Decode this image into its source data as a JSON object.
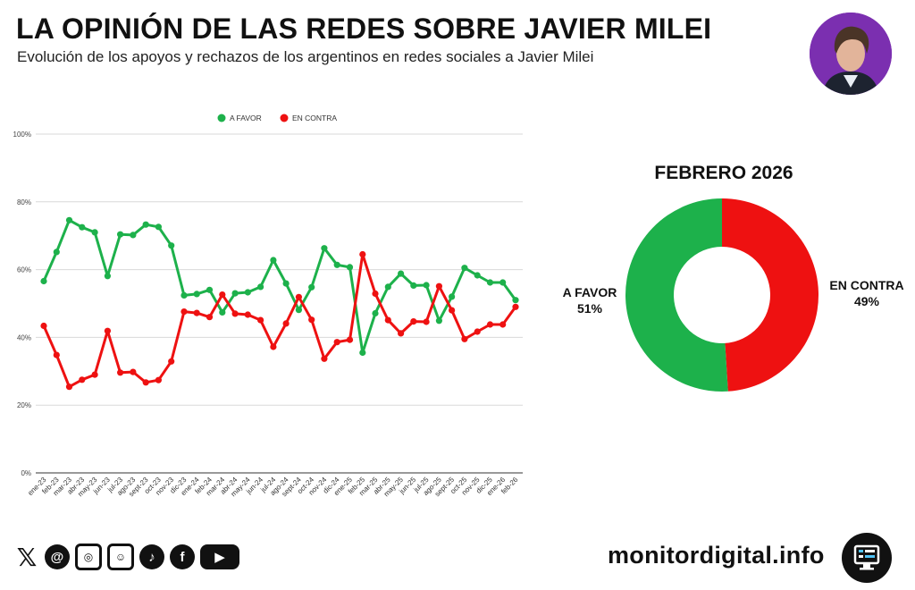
{
  "header": {
    "title": "LA OPINIÓN DE LAS REDES SOBRE JAVIER MILEI",
    "subtitle": "Evolución de los apoyos y rechazos de los argentinos en redes sociales a Javier Milei"
  },
  "colors": {
    "favor": "#1db14b",
    "contra": "#ee1111"
  },
  "chart_data": [
    {
      "type": "line",
      "categories": [
        "ene-23",
        "feb-23",
        "mar-23",
        "abr-23",
        "may-23",
        "jun-23",
        "jul-23",
        "ago-23",
        "sept-23",
        "oct-23",
        "nov-23",
        "dic-23",
        "ene-24",
        "feb-24",
        "mar-24",
        "abr-24",
        "may-24",
        "jun-24",
        "jul-24",
        "ago-24",
        "sept-24",
        "oct-24",
        "nov-24",
        "dic-24",
        "ene-25",
        "feb-25",
        "mar-25",
        "abr-25",
        "may-25",
        "jun-25",
        "jul-25",
        "ago-25",
        "sept-25",
        "oct-25",
        "nov-25",
        "dic-25",
        "ene-26",
        "feb-26"
      ],
      "series": [
        {
          "name": "A FAVOR",
          "values": [
            56.6,
            65.2,
            74.6,
            72.5,
            71.0,
            58.1,
            70.4,
            70.2,
            73.3,
            72.6,
            67.1,
            52.4,
            52.8,
            54.0,
            47.4,
            53.0,
            53.3,
            54.9,
            62.8,
            55.9,
            48.1,
            54.8,
            66.3,
            61.4,
            60.7,
            35.5,
            47.1,
            54.9,
            58.8,
            55.3,
            55.4,
            44.9,
            52.0,
            60.5,
            58.3,
            56.2,
            56.2,
            51.0
          ]
        },
        {
          "name": "EN CONTRA",
          "values": [
            43.4,
            34.8,
            25.4,
            27.5,
            29.0,
            41.9,
            29.6,
            29.8,
            26.7,
            27.4,
            32.9,
            47.6,
            47.2,
            46.0,
            52.6,
            47.0,
            46.7,
            45.1,
            37.2,
            44.1,
            51.9,
            45.2,
            33.7,
            38.6,
            39.3,
            64.5,
            52.9,
            45.1,
            41.2,
            44.7,
            44.6,
            55.1,
            48.0,
            39.5,
            41.7,
            43.8,
            43.8,
            49.0
          ]
        }
      ],
      "yticks": [
        "0%",
        "20%",
        "40%",
        "60%",
        "80%",
        "100%"
      ],
      "ylim": [
        0,
        100
      ],
      "grid": true,
      "legend": "top-center"
    },
    {
      "type": "pie",
      "title": "FEBRERO 2026",
      "labels": [
        "A FAVOR",
        "EN CONTRA"
      ],
      "values": [
        51,
        49
      ],
      "value_labels": [
        "51%",
        "49%"
      ],
      "style": "donut"
    }
  ],
  "footer": {
    "site": "monitordigital.info",
    "social_icons": [
      "x-icon",
      "threads-icon",
      "instagram-icon",
      "telegram-icon",
      "tiktok-icon",
      "facebook-icon",
      "youtube-icon"
    ]
  }
}
